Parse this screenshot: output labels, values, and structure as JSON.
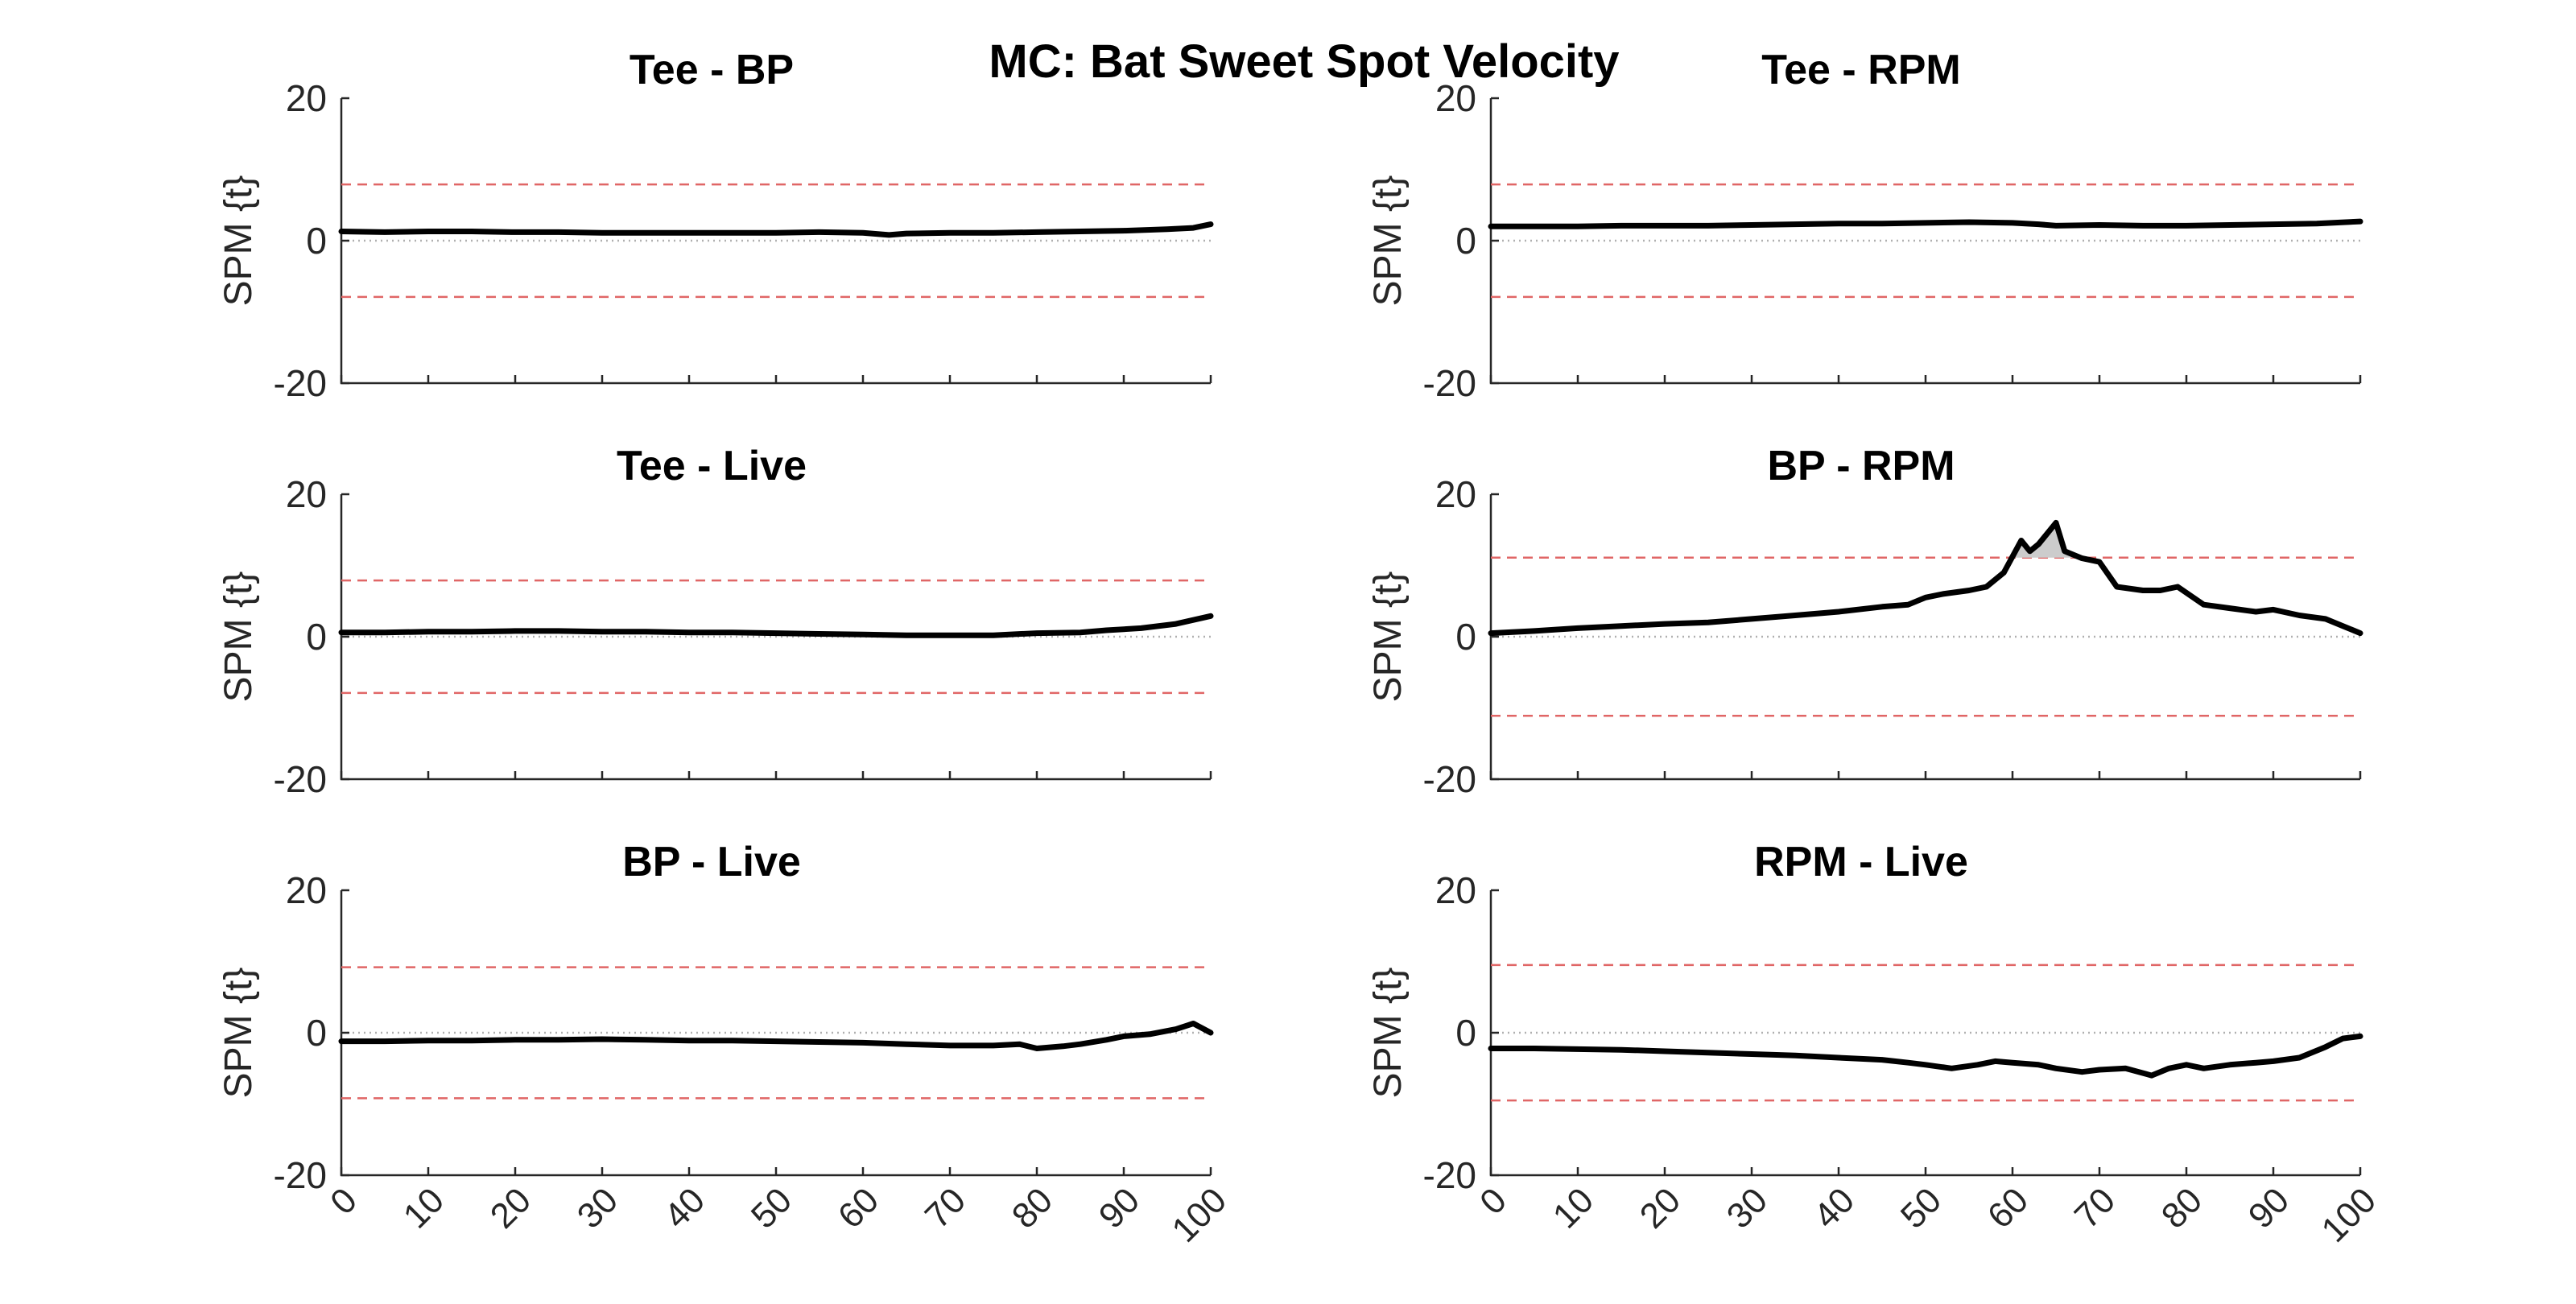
{
  "figure_title": "MC: Bat Sweet Spot Velocity",
  "chart_data": [
    {
      "type": "line",
      "title": "Tee - BP",
      "ylabel": "SPM {t}",
      "xlim": [
        0,
        100
      ],
      "ylim": [
        -20,
        20
      ],
      "yticks": [
        "-20",
        "0",
        "20"
      ],
      "xticks": [
        "0",
        "10",
        "20",
        "30",
        "40",
        "50",
        "60",
        "70",
        "80",
        "90",
        "100"
      ],
      "threshold": 7.9,
      "x": [
        0,
        5,
        10,
        15,
        20,
        25,
        30,
        35,
        40,
        45,
        50,
        55,
        60,
        63,
        65,
        70,
        75,
        80,
        85,
        90,
        95,
        98,
        100
      ],
      "y": [
        1.3,
        1.2,
        1.3,
        1.3,
        1.2,
        1.2,
        1.1,
        1.1,
        1.1,
        1.1,
        1.1,
        1.2,
        1.1,
        0.8,
        1.0,
        1.1,
        1.1,
        1.2,
        1.3,
        1.4,
        1.6,
        1.8,
        2.3
      ]
    },
    {
      "type": "line",
      "title": "Tee - RPM",
      "ylabel": "SPM {t}",
      "xlim": [
        0,
        100
      ],
      "ylim": [
        -20,
        20
      ],
      "yticks": [
        "-20",
        "0",
        "20"
      ],
      "xticks": [
        "0",
        "10",
        "20",
        "30",
        "40",
        "50",
        "60",
        "70",
        "80",
        "90",
        "100"
      ],
      "threshold": 7.9,
      "x": [
        0,
        5,
        10,
        15,
        20,
        25,
        30,
        35,
        40,
        45,
        50,
        55,
        60,
        63,
        65,
        70,
        75,
        80,
        85,
        90,
        95,
        100
      ],
      "y": [
        2.0,
        2.0,
        2.0,
        2.1,
        2.1,
        2.1,
        2.2,
        2.3,
        2.4,
        2.4,
        2.5,
        2.6,
        2.5,
        2.3,
        2.1,
        2.2,
        2.1,
        2.1,
        2.2,
        2.3,
        2.4,
        2.7
      ]
    },
    {
      "type": "line",
      "title": "Tee - Live",
      "ylabel": "SPM {t}",
      "xlim": [
        0,
        100
      ],
      "ylim": [
        -20,
        20
      ],
      "yticks": [
        "-20",
        "0",
        "20"
      ],
      "xticks": [
        "0",
        "10",
        "20",
        "30",
        "40",
        "50",
        "60",
        "70",
        "80",
        "90",
        "100"
      ],
      "threshold": 7.9,
      "x": [
        0,
        5,
        10,
        15,
        20,
        25,
        30,
        35,
        40,
        45,
        50,
        55,
        60,
        65,
        70,
        75,
        80,
        85,
        88,
        92,
        96,
        100
      ],
      "y": [
        0.6,
        0.6,
        0.7,
        0.7,
        0.8,
        0.8,
        0.7,
        0.7,
        0.6,
        0.6,
        0.5,
        0.4,
        0.3,
        0.2,
        0.2,
        0.2,
        0.5,
        0.6,
        0.9,
        1.2,
        1.8,
        2.9
      ]
    },
    {
      "type": "line",
      "title": "BP - RPM",
      "ylabel": "SPM {t}",
      "xlim": [
        0,
        100
      ],
      "ylim": [
        -20,
        20
      ],
      "yticks": [
        "-20",
        "0",
        "20"
      ],
      "xticks": [
        "0",
        "10",
        "20",
        "30",
        "40",
        "50",
        "60",
        "70",
        "80",
        "90",
        "100"
      ],
      "threshold": 11.1,
      "x": [
        0,
        5,
        10,
        15,
        20,
        25,
        30,
        35,
        40,
        45,
        48,
        50,
        52,
        55,
        57,
        59,
        61,
        62,
        63,
        65,
        66,
        68,
        70,
        72,
        75,
        77,
        79,
        82,
        85,
        88,
        90,
        93,
        96,
        98,
        100
      ],
      "y": [
        0.5,
        0.8,
        1.2,
        1.5,
        1.8,
        2.0,
        2.5,
        3.0,
        3.5,
        4.2,
        4.5,
        5.5,
        6.0,
        6.5,
        7.0,
        9.0,
        13.5,
        12.0,
        13.0,
        16.0,
        12.0,
        11.0,
        10.5,
        7.0,
        6.5,
        6.5,
        7.0,
        4.5,
        4.0,
        3.5,
        3.8,
        3.0,
        2.5,
        1.5,
        0.5
      ]
    },
    {
      "type": "line",
      "title": "BP - Live",
      "ylabel": "SPM {t}",
      "xlim": [
        0,
        100
      ],
      "ylim": [
        -20,
        20
      ],
      "yticks": [
        "-20",
        "0",
        "20"
      ],
      "xticks": [
        "0",
        "10",
        "20",
        "30",
        "40",
        "50",
        "60",
        "70",
        "80",
        "90",
        "100"
      ],
      "threshold": 9.2,
      "x": [
        0,
        5,
        10,
        15,
        20,
        25,
        30,
        35,
        40,
        45,
        50,
        55,
        60,
        65,
        70,
        75,
        78,
        80,
        83,
        85,
        88,
        90,
        93,
        96,
        98,
        100
      ],
      "y": [
        -1.2,
        -1.2,
        -1.1,
        -1.1,
        -1.0,
        -1.0,
        -0.9,
        -1.0,
        -1.1,
        -1.1,
        -1.2,
        -1.3,
        -1.4,
        -1.6,
        -1.8,
        -1.8,
        -1.6,
        -2.2,
        -1.9,
        -1.6,
        -1.0,
        -0.5,
        -0.2,
        0.5,
        1.3,
        0.0
      ]
    },
    {
      "type": "line",
      "title": "RPM - Live",
      "ylabel": "SPM {t}",
      "xlim": [
        0,
        100
      ],
      "ylim": [
        -20,
        20
      ],
      "yticks": [
        "-20",
        "0",
        "20"
      ],
      "xticks": [
        "0",
        "10",
        "20",
        "30",
        "40",
        "50",
        "60",
        "70",
        "80",
        "90",
        "100"
      ],
      "threshold": 9.5,
      "x": [
        0,
        5,
        10,
        15,
        20,
        25,
        30,
        35,
        40,
        45,
        48,
        50,
        53,
        56,
        58,
        60,
        63,
        65,
        68,
        70,
        73,
        76,
        78,
        80,
        82,
        85,
        88,
        90,
        93,
        96,
        98,
        100
      ],
      "y": [
        -2.2,
        -2.2,
        -2.3,
        -2.4,
        -2.6,
        -2.8,
        -3.0,
        -3.2,
        -3.5,
        -3.8,
        -4.2,
        -4.5,
        -5.0,
        -4.5,
        -4.0,
        -4.2,
        -4.5,
        -5.0,
        -5.5,
        -5.2,
        -5.0,
        -6.0,
        -5.0,
        -4.5,
        -5.0,
        -4.5,
        -4.2,
        -4.0,
        -3.5,
        -2.0,
        -0.8,
        -0.5
      ]
    }
  ]
}
